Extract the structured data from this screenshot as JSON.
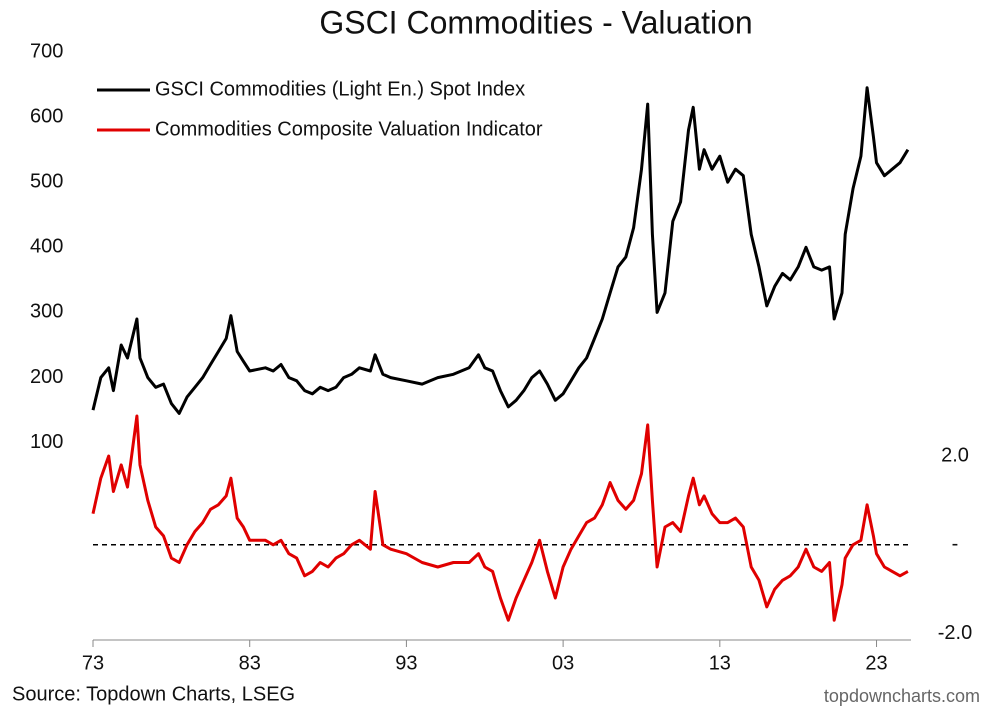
{
  "chart_data": {
    "type": "line",
    "title": "GSCI Commodities - Valuation",
    "source": "Source: Topdown Charts, LSEG",
    "watermark": "topdowncharts.com",
    "x": [
      1973,
      1973.5,
      1974,
      1974.3,
      1974.8,
      1975.2,
      1975.8,
      1976,
      1976.5,
      1977,
      1977.5,
      1978,
      1978.5,
      1979,
      1979.5,
      1980,
      1980.5,
      1981,
      1981.5,
      1981.8,
      1982.2,
      1982.6,
      1983,
      1984,
      1984.5,
      1985,
      1985.5,
      1986,
      1986.5,
      1987,
      1987.5,
      1988,
      1988.5,
      1989,
      1989.5,
      1990,
      1990.7,
      1991,
      1991.5,
      1992,
      1993,
      1994,
      1995,
      1996,
      1997,
      1997.6,
      1998,
      1998.5,
      1999,
      1999.5,
      2000,
      2000.5,
      2001,
      2001.5,
      2002,
      2002.5,
      2003,
      2003.5,
      2004,
      2004.5,
      2005,
      2005.5,
      2006,
      2006.5,
      2007,
      2007.5,
      2008,
      2008.4,
      2008.7,
      2009,
      2009.5,
      2010,
      2010.5,
      2011,
      2011.3,
      2011.7,
      2012,
      2012.5,
      2013,
      2013.5,
      2014,
      2014.5,
      2015,
      2015.5,
      2016,
      2016.5,
      2017,
      2017.5,
      2018,
      2018.5,
      2019,
      2019.5,
      2020,
      2020.3,
      2020.8,
      2021,
      2021.5,
      2022,
      2022.4,
      2022.8,
      2023,
      2023.5,
      2024,
      2024.5,
      2025
    ],
    "series": [
      {
        "name": "GSCI Commodities (Light En.) Spot Index",
        "color": "#000000",
        "axis": "y",
        "values": [
          150,
          200,
          215,
          180,
          250,
          230,
          290,
          230,
          200,
          185,
          190,
          160,
          145,
          170,
          185,
          200,
          220,
          240,
          260,
          295,
          240,
          225,
          210,
          215,
          210,
          220,
          200,
          195,
          180,
          175,
          185,
          180,
          185,
          200,
          205,
          215,
          210,
          235,
          205,
          200,
          195,
          190,
          200,
          205,
          215,
          235,
          215,
          210,
          180,
          155,
          165,
          180,
          200,
          210,
          190,
          165,
          175,
          195,
          215,
          230,
          260,
          290,
          330,
          370,
          385,
          430,
          520,
          620,
          420,
          300,
          330,
          440,
          470,
          580,
          615,
          520,
          550,
          520,
          540,
          500,
          520,
          510,
          420,
          370,
          310,
          340,
          360,
          350,
          370,
          400,
          370,
          365,
          370,
          290,
          330,
          420,
          490,
          540,
          645,
          570,
          530,
          510,
          520,
          530,
          550
        ]
      },
      {
        "name": "Commodities Composite Valuation Indicator",
        "color": "#e00000",
        "axis": "y2",
        "values": [
          0.7,
          1.5,
          2.0,
          1.2,
          1.8,
          1.3,
          2.9,
          1.8,
          1.0,
          0.4,
          0.2,
          -0.3,
          -0.4,
          0.0,
          0.3,
          0.5,
          0.8,
          0.9,
          1.1,
          1.5,
          0.6,
          0.4,
          0.1,
          0.1,
          0.0,
          0.1,
          -0.2,
          -0.3,
          -0.7,
          -0.6,
          -0.4,
          -0.5,
          -0.3,
          -0.2,
          0.0,
          0.1,
          -0.1,
          1.2,
          0.0,
          -0.1,
          -0.2,
          -0.4,
          -0.5,
          -0.4,
          -0.4,
          -0.2,
          -0.5,
          -0.6,
          -1.2,
          -1.7,
          -1.2,
          -0.8,
          -0.4,
          0.1,
          -0.6,
          -1.2,
          -0.5,
          -0.1,
          0.2,
          0.5,
          0.6,
          0.9,
          1.4,
          1.0,
          0.8,
          1.0,
          1.6,
          2.7,
          1.0,
          -0.5,
          0.4,
          0.5,
          0.3,
          1.1,
          1.5,
          0.9,
          1.1,
          0.7,
          0.5,
          0.5,
          0.6,
          0.4,
          -0.5,
          -0.8,
          -1.4,
          -1.0,
          -0.8,
          -0.7,
          -0.5,
          -0.1,
          -0.5,
          -0.6,
          -0.4,
          -1.7,
          -0.9,
          -0.3,
          0.0,
          0.1,
          0.9,
          0.2,
          -0.2,
          -0.5,
          -0.6,
          -0.7,
          -0.6
        ]
      }
    ],
    "xlim": [
      1973,
      2025.2
    ],
    "xticks": [
      {
        "value": 1973,
        "label": "73"
      },
      {
        "value": 1983,
        "label": "83"
      },
      {
        "value": 1993,
        "label": "93"
      },
      {
        "value": 2003,
        "label": "03"
      },
      {
        "value": 2013,
        "label": "13"
      },
      {
        "value": 2023,
        "label": "23"
      }
    ],
    "ylim": [
      -200,
      700
    ],
    "yticks": [
      100,
      200,
      300,
      400,
      500,
      600,
      700
    ],
    "y2lim": [
      -2.1,
      11.1
    ],
    "y2ticks": [
      {
        "value": 2,
        "label": "2.0"
      },
      {
        "value": 0,
        "label": "-"
      },
      {
        "value": -2,
        "label": "-2.0"
      }
    ],
    "y2_zero_line": true,
    "legend": "top-left"
  }
}
